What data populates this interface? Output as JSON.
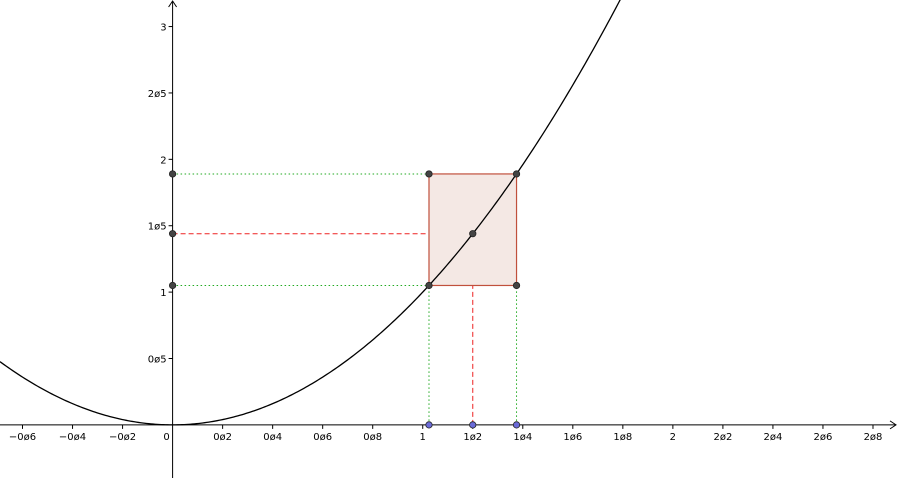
{
  "chart_data": {
    "type": "line",
    "title": "",
    "xlabel": "",
    "ylabel": "",
    "grid": false,
    "xlim": [
      -0.69,
      2.9
    ],
    "ylim": [
      -0.4,
      3.2
    ],
    "x_ticks": [
      {
        "value": -0.6,
        "label": "−0ø6"
      },
      {
        "value": -0.4,
        "label": "−0ø4"
      },
      {
        "value": -0.2,
        "label": "−0ø2"
      },
      {
        "value": 0,
        "label": "0"
      },
      {
        "value": 0.2,
        "label": "0ø2"
      },
      {
        "value": 0.4,
        "label": "0ø4"
      },
      {
        "value": 0.6,
        "label": "0ø6"
      },
      {
        "value": 0.8,
        "label": "0ø8"
      },
      {
        "value": 1,
        "label": "1"
      },
      {
        "value": 1.2,
        "label": "1ø2"
      },
      {
        "value": 1.4,
        "label": "1ø4"
      },
      {
        "value": 1.6,
        "label": "1ø6"
      },
      {
        "value": 1.8,
        "label": "1ø8"
      },
      {
        "value": 2,
        "label": "2"
      },
      {
        "value": 2.2,
        "label": "2ø2"
      },
      {
        "value": 2.4,
        "label": "2ø4"
      },
      {
        "value": 2.6,
        "label": "2ø6"
      },
      {
        "value": 2.8,
        "label": "2ø8"
      }
    ],
    "y_ticks": [
      {
        "value": 0.5,
        "label": "0ø5"
      },
      {
        "value": 1,
        "label": "1"
      },
      {
        "value": 1.5,
        "label": "1ø5"
      },
      {
        "value": 2,
        "label": "2"
      },
      {
        "value": 2.5,
        "label": "2ø5"
      },
      {
        "value": 3,
        "label": "3"
      }
    ],
    "curve": {
      "function": "y = x^2",
      "x_from": -0.69,
      "x_to": 1.79,
      "color": "#000000"
    },
    "points": {
      "a": 1.025,
      "c": 1.2,
      "b": 1.375,
      "fa": 1.05,
      "fc": 1.44,
      "fb": 1.89
    },
    "rectangle": {
      "x1": 1.025,
      "x2": 1.375,
      "y1": 1.05,
      "y2": 1.89,
      "stroke": "#c0503c",
      "fill": "#f4e8e4"
    },
    "colors": {
      "curve": "#000000",
      "dotted_guides": "#22aa22",
      "dashed_guides": "#ee2222",
      "point_fill": "#444444",
      "axis_point_fill": "#6b6bd8"
    }
  }
}
